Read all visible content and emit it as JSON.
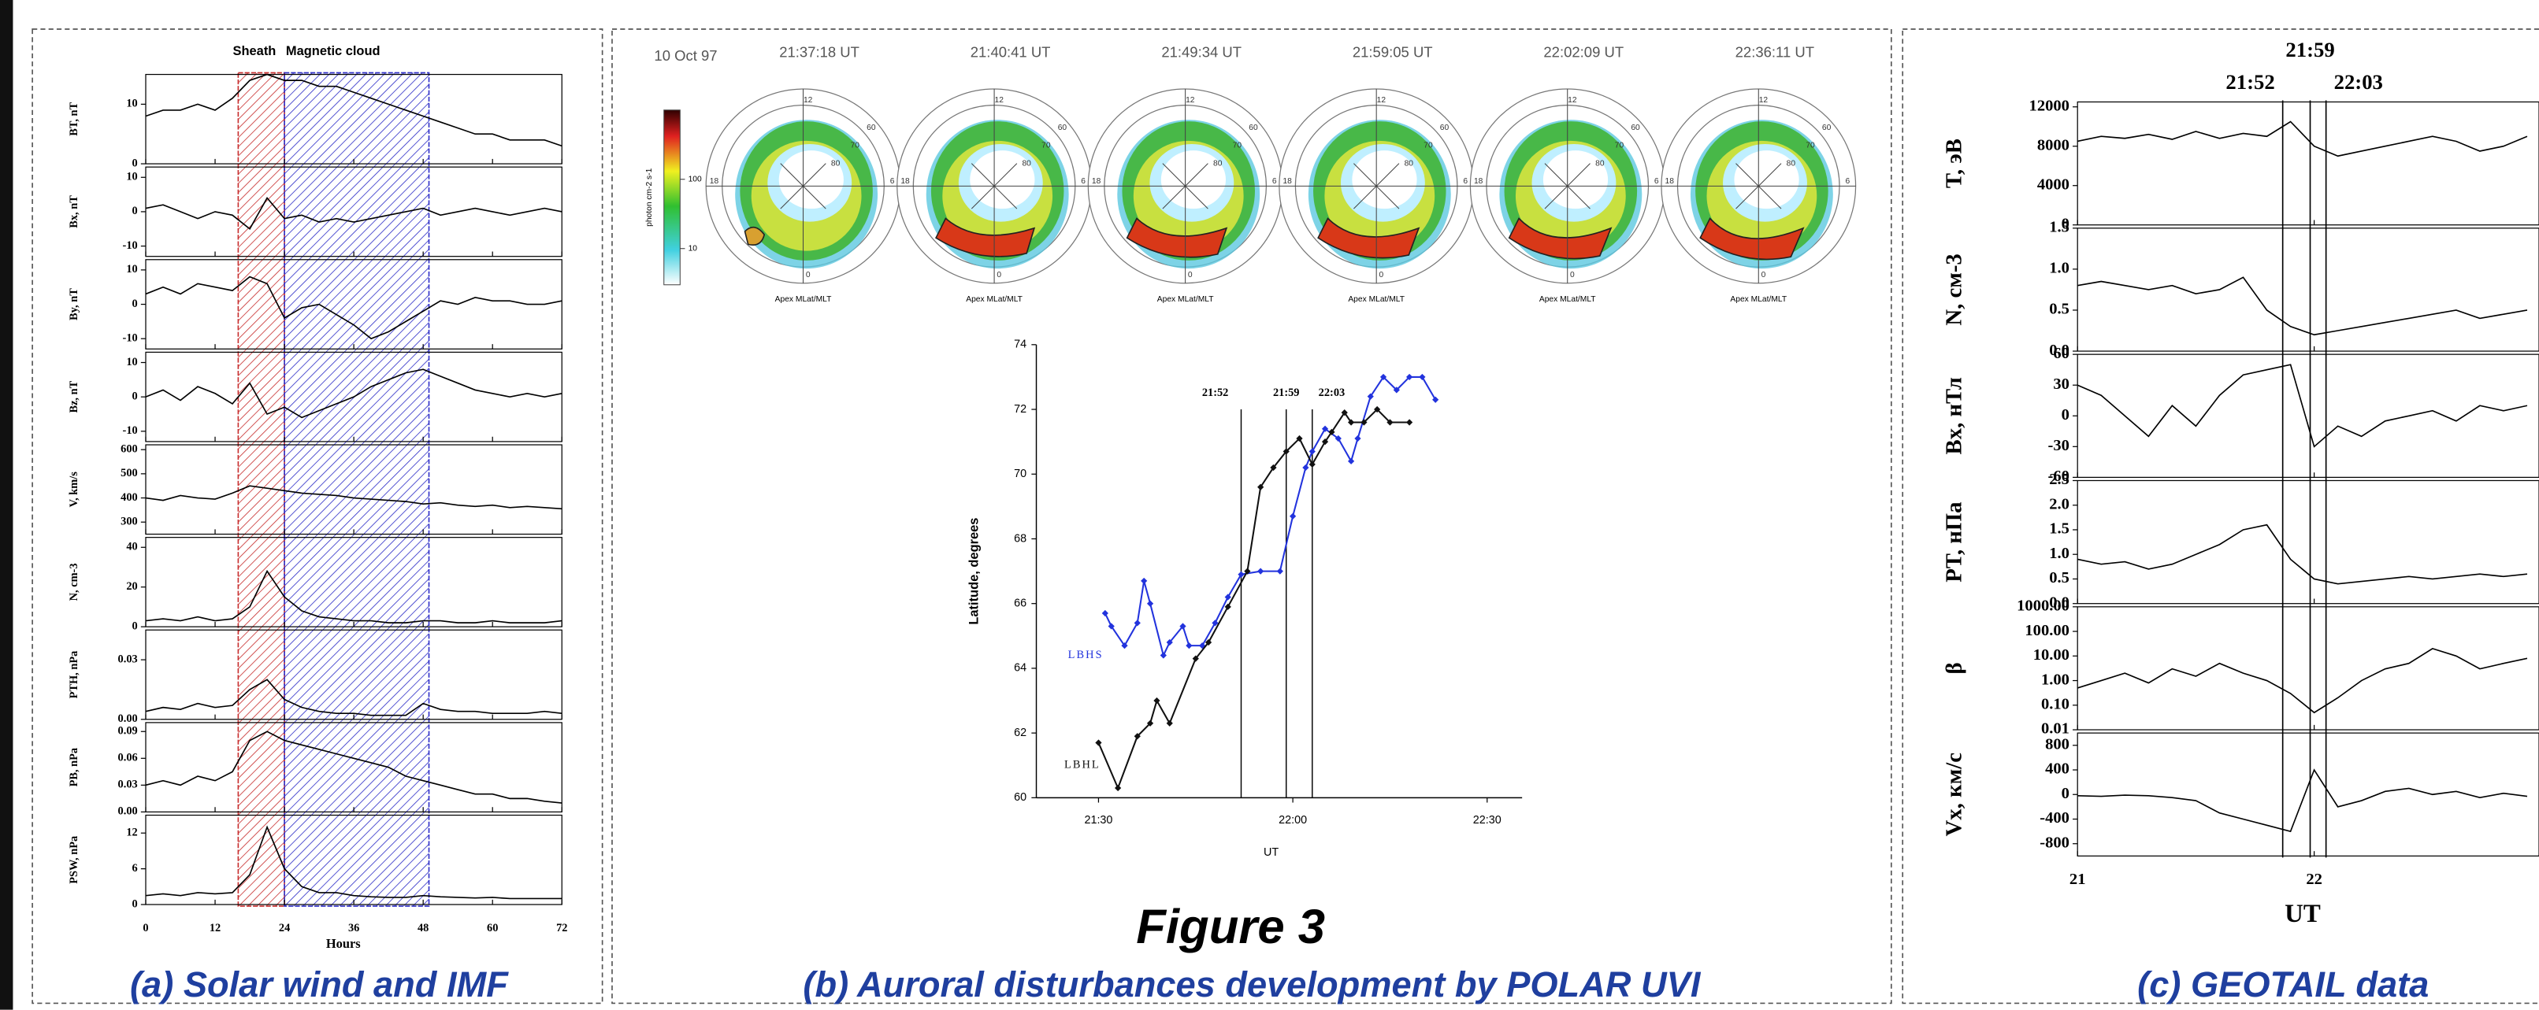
{
  "figure_title": "Figure 3",
  "captions": [
    "(a) Solar wind and IMF",
    "(b) Auroral disturbances development by POLAR UVI",
    "(c) GEOTAIL data"
  ],
  "auroral_images": {
    "date": "10 Oct 97",
    "times": [
      "21:37:18 UT",
      "21:40:41 UT",
      "21:49:34 UT",
      "21:59:05 UT",
      "22:02:09 UT",
      "22:36:11 UT"
    ],
    "caption": "Apex MLat/MLT",
    "polar_labels": [
      "12",
      "6",
      "0",
      "18",
      "80",
      "70",
      "60"
    ],
    "colorbar": {
      "label": "photon cm-2 s-1",
      "lim": [
        3,
        1000
      ],
      "ticks": [
        10,
        100
      ]
    }
  },
  "chart_data": [
    {
      "type": "stacked-line",
      "color": "#000000",
      "xlabel": "Hours",
      "xlim": [
        0,
        72
      ],
      "xticks": [
        0,
        12,
        24,
        36,
        48,
        60,
        72
      ],
      "intervals": [
        {
          "name": "Sheath",
          "start": 16,
          "end": 24,
          "color": "#c83030"
        },
        {
          "name": "Magnetic cloud",
          "start": 24,
          "end": 49,
          "color": "#3030c8"
        }
      ],
      "x": [
        0,
        3,
        6,
        9,
        12,
        15,
        18,
        21,
        24,
        27,
        30,
        33,
        36,
        39,
        42,
        45,
        48,
        51,
        54,
        57,
        60,
        63,
        66,
        69,
        72
      ],
      "subplots": [
        {
          "ylabel": "BT, nT",
          "ylim": [
            0,
            15
          ],
          "yticks": [
            0,
            10
          ],
          "values": [
            8,
            9,
            9,
            10,
            9,
            11,
            14,
            15,
            14,
            14,
            13,
            13,
            12,
            11,
            10,
            9,
            8,
            7,
            6,
            5,
            5,
            4,
            4,
            4,
            3
          ]
        },
        {
          "ylabel": "Bx, nT",
          "ylim": [
            -13,
            13
          ],
          "yticks": [
            -10,
            0,
            10
          ],
          "values": [
            1,
            2,
            0,
            -2,
            0,
            -1,
            -5,
            4,
            -2,
            -1,
            -3,
            -2,
            -3,
            -2,
            -1,
            0,
            1,
            -1,
            0,
            1,
            0,
            -1,
            0,
            1,
            0
          ]
        },
        {
          "ylabel": "By, nT",
          "ylim": [
            -13,
            13
          ],
          "yticks": [
            -10,
            0,
            10
          ],
          "values": [
            3,
            5,
            3,
            6,
            5,
            4,
            8,
            6,
            -4,
            -1,
            0,
            -3,
            -6,
            -10,
            -8,
            -5,
            -2,
            1,
            0,
            2,
            1,
            1,
            0,
            0,
            1
          ]
        },
        {
          "ylabel": "Bz, nT",
          "ylim": [
            -13,
            13
          ],
          "yticks": [
            -10,
            0,
            10
          ],
          "values": [
            0,
            2,
            -1,
            3,
            1,
            -2,
            4,
            -5,
            -3,
            -6,
            -4,
            -2,
            0,
            3,
            5,
            7,
            8,
            6,
            4,
            2,
            1,
            0,
            1,
            0,
            1
          ]
        },
        {
          "ylabel": "V, km/s",
          "ylim": [
            250,
            620
          ],
          "yticks": [
            300,
            400,
            500,
            600
          ],
          "values": [
            400,
            390,
            410,
            400,
            395,
            420,
            450,
            440,
            430,
            420,
            415,
            410,
            400,
            395,
            390,
            385,
            375,
            380,
            370,
            365,
            370,
            360,
            365,
            360,
            355
          ]
        },
        {
          "ylabel": "N, cm-3",
          "ylim": [
            0,
            45
          ],
          "yticks": [
            0,
            20,
            40
          ],
          "values": [
            3,
            4,
            3,
            5,
            3,
            4,
            10,
            28,
            15,
            8,
            5,
            4,
            3,
            3,
            2,
            2,
            3,
            3,
            2,
            2,
            3,
            2,
            2,
            2,
            3
          ]
        },
        {
          "ylabel": "PTH, nPa",
          "ylim": [
            0,
            0.045
          ],
          "yticks": [
            {
              "value": 0,
              "label": "0.00"
            },
            0.03
          ],
          "values": [
            0.004,
            0.006,
            0.005,
            0.008,
            0.006,
            0.007,
            0.015,
            0.02,
            0.01,
            0.006,
            0.004,
            0.003,
            0.003,
            0.002,
            0.002,
            0.002,
            0.008,
            0.005,
            0.004,
            0.004,
            0.003,
            0.003,
            0.003,
            0.004,
            0.003
          ]
        },
        {
          "ylabel": "PB, nPa",
          "ylim": [
            0,
            0.1
          ],
          "yticks": [
            {
              "value": 0,
              "label": "0.00"
            },
            0.03,
            0.06,
            0.09
          ],
          "values": [
            0.03,
            0.035,
            0.03,
            0.04,
            0.035,
            0.045,
            0.08,
            0.09,
            0.08,
            0.075,
            0.07,
            0.065,
            0.06,
            0.055,
            0.05,
            0.04,
            0.035,
            0.03,
            0.025,
            0.02,
            0.02,
            0.015,
            0.015,
            0.012,
            0.01
          ]
        },
        {
          "ylabel": "PSW, nPa",
          "ylim": [
            0,
            15
          ],
          "yticks": [
            0,
            6,
            12
          ],
          "values": [
            1.5,
            1.8,
            1.5,
            2,
            1.8,
            2,
            5,
            13,
            6,
            3,
            2,
            2,
            1.5,
            1.3,
            1.2,
            1.2,
            1.5,
            1.3,
            1.2,
            1.1,
            1.2,
            1,
            1,
            1,
            1
          ]
        }
      ]
    },
    {
      "type": "line",
      "xlabel": "UT",
      "ylabel": "Latitude, degrees",
      "xlim": [
        21.34,
        22.59
      ],
      "ylim": [
        60,
        74
      ],
      "xticks": [
        {
          "value": 21.5,
          "label": "21:30"
        },
        {
          "value": 22,
          "label": "22:00"
        },
        {
          "value": 22.5,
          "label": "22:30"
        }
      ],
      "yticks": [
        60,
        62,
        64,
        66,
        68,
        70,
        72,
        74
      ],
      "vlines": [
        {
          "value": 21.867,
          "label": "21:52"
        },
        {
          "value": 21.983,
          "label": "21:59"
        },
        {
          "value": 22.05,
          "label": "22:03"
        }
      ],
      "series": [
        {
          "name": "LBHS",
          "color": "#2233dd",
          "x": [
            21.517,
            21.533,
            21.567,
            21.6,
            21.617,
            21.633,
            21.667,
            21.683,
            21.717,
            21.733,
            21.767,
            21.8,
            21.833,
            21.867,
            21.917,
            21.967,
            22,
            22.033,
            22.05,
            22.083,
            22.117,
            22.15,
            22.167,
            22.2,
            22.233,
            22.267,
            22.3,
            22.333,
            22.367
          ],
          "values": [
            65.7,
            65.3,
            64.7,
            65.4,
            66.7,
            66.0,
            64.4,
            64.8,
            65.3,
            64.7,
            64.7,
            65.4,
            66.2,
            66.9,
            67.0,
            67.0,
            68.7,
            70.2,
            70.7,
            71.4,
            71.1,
            70.4,
            71.1,
            72.4,
            73.0,
            72.6,
            73.0,
            73.0,
            72.3
          ]
        },
        {
          "name": "LBHL",
          "color": "#111111",
          "x": [
            21.5,
            21.55,
            21.6,
            21.633,
            21.65,
            21.683,
            21.75,
            21.783,
            21.833,
            21.883,
            21.917,
            21.95,
            21.983,
            22.017,
            22.05,
            22.083,
            22.1,
            22.133,
            22.15,
            22.183,
            22.217,
            22.25,
            22.3
          ],
          "values": [
            61.7,
            60.3,
            61.9,
            62.3,
            63.0,
            62.3,
            64.3,
            64.8,
            65.9,
            67.0,
            69.6,
            70.2,
            70.7,
            71.1,
            70.3,
            71.0,
            71.3,
            71.9,
            71.6,
            71.6,
            72.0,
            71.6,
            71.6
          ]
        }
      ]
    },
    {
      "type": "stacked-line",
      "color": "#000000",
      "xlabel": "UT",
      "xlim": [
        21,
        22.95
      ],
      "xticks": [
        21,
        22
      ],
      "vlines": [
        {
          "value": 21.867,
          "label": "21:52"
        },
        {
          "value": 21.983,
          "label": "21:59"
        },
        {
          "value": 22.05,
          "label": "22:03"
        }
      ],
      "x": [
        21.0,
        21.1,
        21.2,
        21.3,
        21.4,
        21.5,
        21.6,
        21.7,
        21.8,
        21.9,
        22.0,
        22.1,
        22.2,
        22.3,
        22.4,
        22.5,
        22.6,
        22.7,
        22.8,
        22.9
      ],
      "subplots": [
        {
          "ylabel": "T, эВ",
          "ylim": [
            0,
            12500
          ],
          "yticks": [
            0,
            4000,
            8000,
            12000
          ],
          "values": [
            8500,
            9000,
            8800,
            9200,
            8700,
            9500,
            8800,
            9300,
            9000,
            10500,
            8000,
            7000,
            7500,
            8000,
            8500,
            9000,
            8500,
            7500,
            8000,
            9000
          ]
        },
        {
          "ylabel": "N, см-3",
          "ylim": [
            0,
            1.5
          ],
          "yticks": [
            {
              "value": 0,
              "label": "0.0"
            },
            0.5,
            {
              "value": 1,
              "label": "1.0"
            },
            1.5
          ],
          "values": [
            0.8,
            0.85,
            0.8,
            0.75,
            0.8,
            0.7,
            0.75,
            0.9,
            0.5,
            0.3,
            0.2,
            0.25,
            0.3,
            0.35,
            0.4,
            0.45,
            0.5,
            0.4,
            0.45,
            0.5
          ]
        },
        {
          "ylabel": "Bx, нТл",
          "ylim": [
            -60,
            60
          ],
          "yticks": [
            -60,
            -30,
            0,
            30,
            60
          ],
          "values": [
            30,
            20,
            0,
            -20,
            10,
            -10,
            20,
            40,
            45,
            50,
            -30,
            -10,
            -20,
            -5,
            0,
            5,
            -5,
            10,
            5,
            10
          ]
        },
        {
          "ylabel": "PT, нПа",
          "ylim": [
            0,
            2.5
          ],
          "yticks": [
            {
              "value": 0,
              "label": "0.0"
            },
            0.5,
            {
              "value": 1,
              "label": "1.0"
            },
            1.5,
            {
              "value": 2,
              "label": "2.0"
            },
            2.5
          ],
          "values": [
            0.9,
            0.8,
            0.85,
            0.7,
            0.8,
            1.0,
            1.2,
            1.5,
            1.6,
            0.9,
            0.5,
            0.4,
            0.45,
            0.5,
            0.55,
            0.5,
            0.55,
            0.6,
            0.55,
            0.6
          ]
        },
        {
          "ylabel": "β",
          "log": true,
          "ylim": [
            0.01,
            1000
          ],
          "yticks": [
            {
              "value": 0.01,
              "label": "0.01"
            },
            {
              "value": 0.1,
              "label": "0.10"
            },
            {
              "value": 1,
              "label": "1.00"
            },
            {
              "value": 10,
              "label": "10.00"
            },
            {
              "value": 100,
              "label": "100.00"
            },
            {
              "value": 1000,
              "label": "1000.00"
            }
          ],
          "values": [
            0.5,
            1,
            2,
            0.8,
            3,
            1.5,
            5,
            2,
            1,
            0.3,
            0.05,
            0.2,
            1,
            3,
            5,
            20,
            10,
            3,
            5,
            8
          ]
        },
        {
          "ylabel": "Vx, км/с",
          "ylim": [
            -1000,
            1000
          ],
          "yticks": [
            -800,
            -400,
            0,
            400,
            800
          ],
          "values": [
            -20,
            -30,
            -10,
            -20,
            -50,
            -100,
            -300,
            -400,
            -500,
            -600,
            400,
            -200,
            -100,
            50,
            100,
            0,
            50,
            -50,
            20,
            -30
          ]
        }
      ]
    }
  ]
}
